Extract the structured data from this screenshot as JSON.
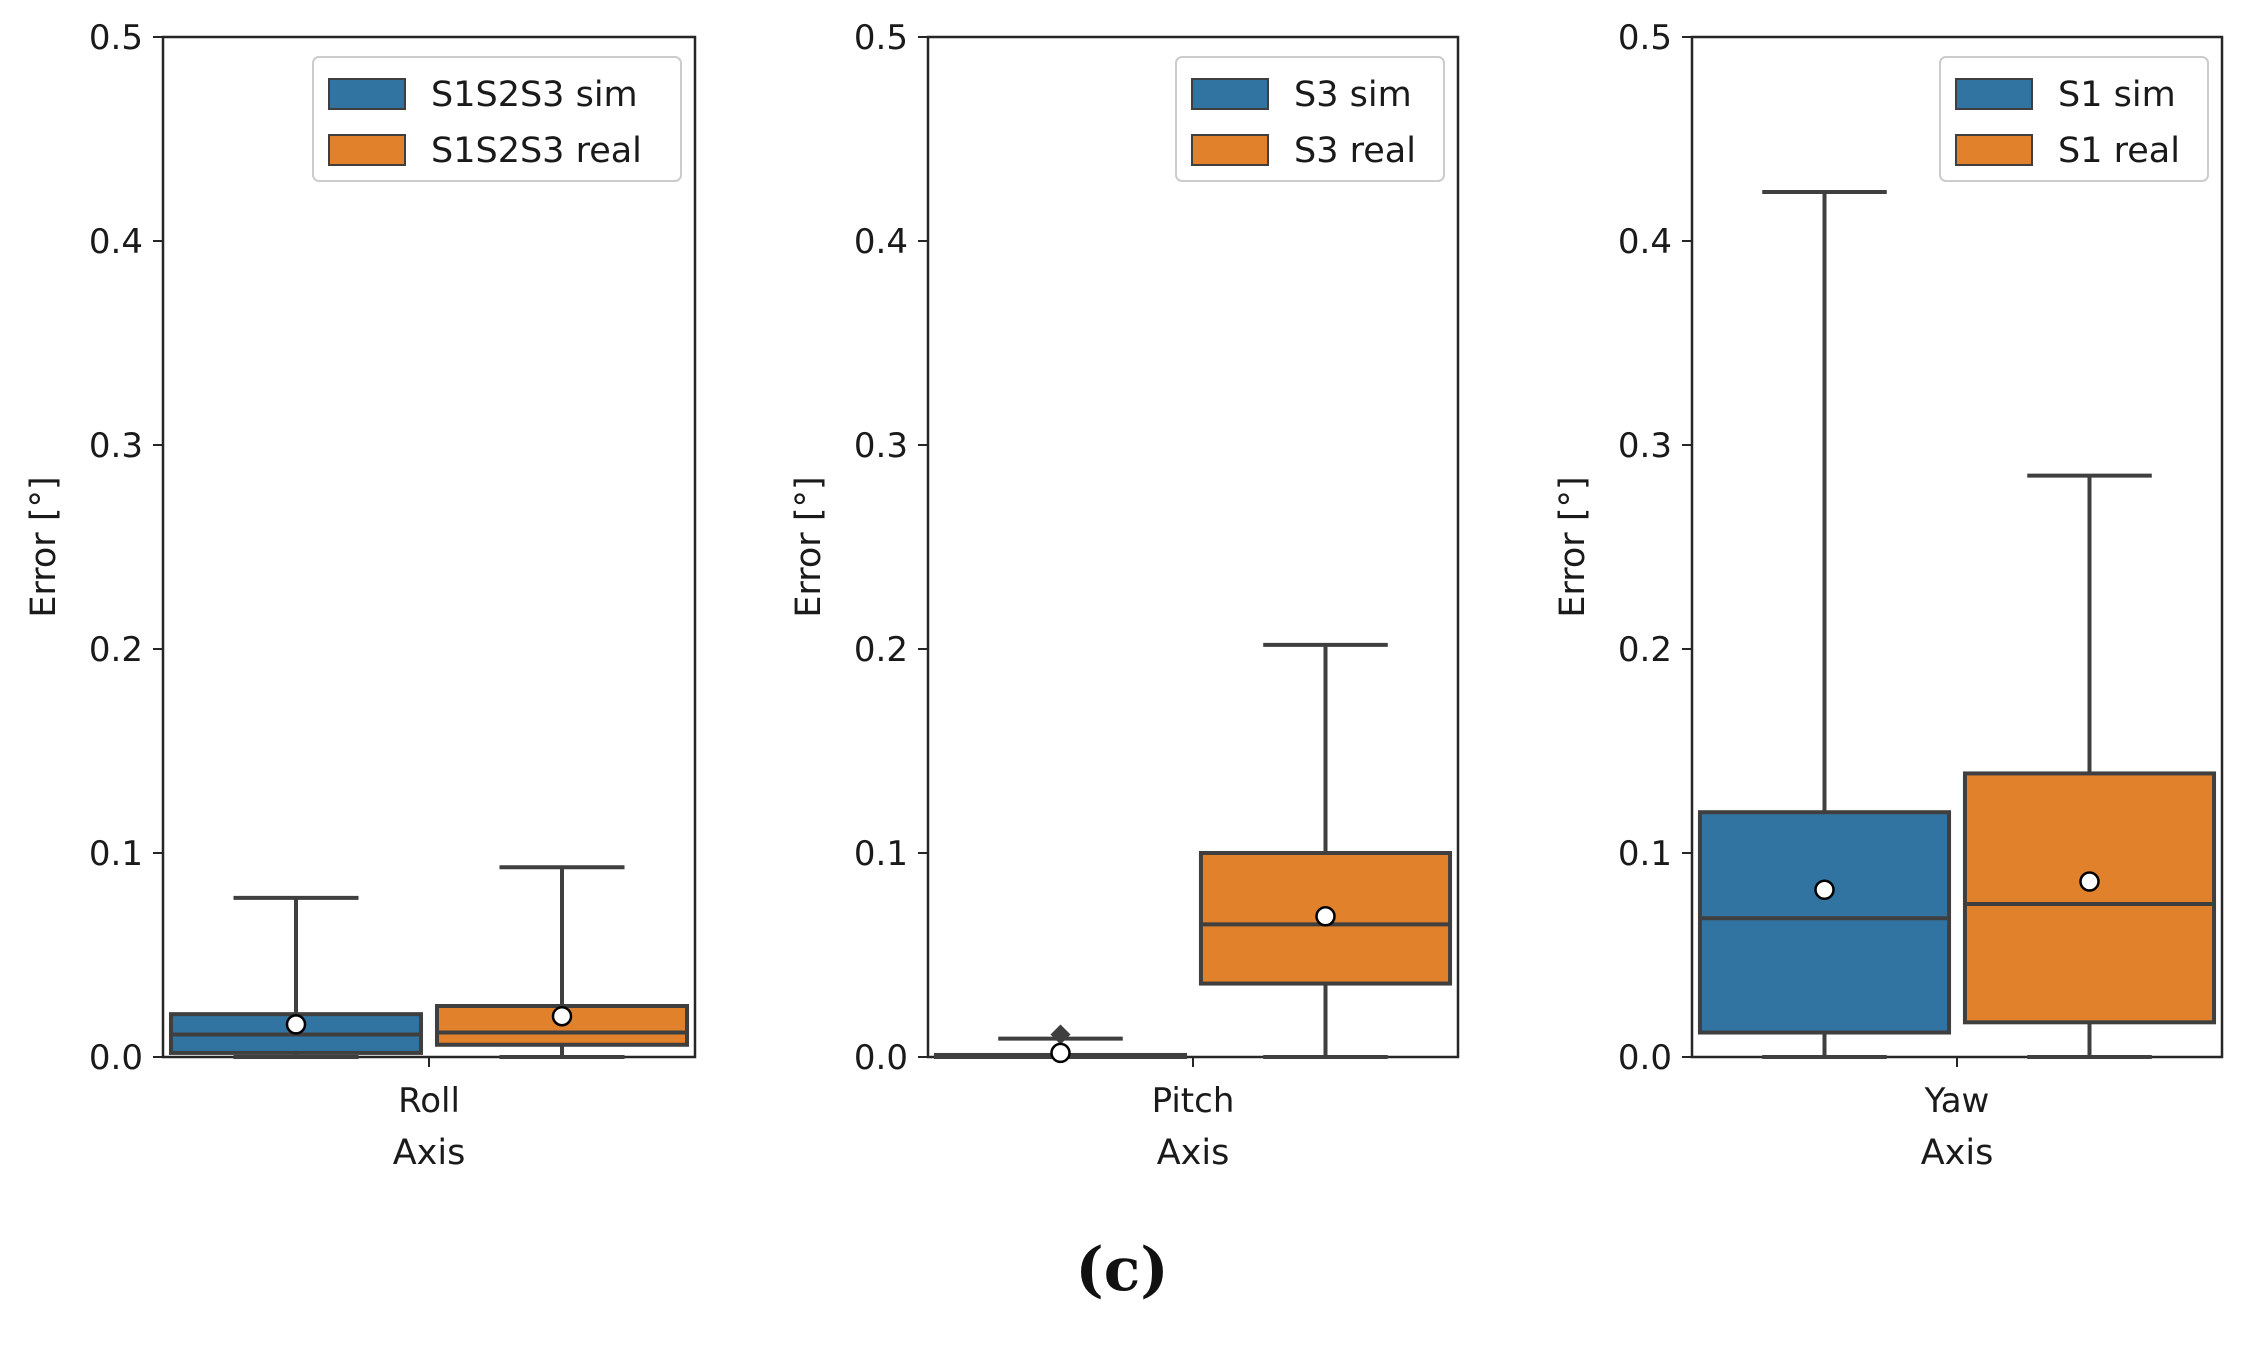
{
  "figure_caption": "(c)",
  "colors": {
    "sim": "#3274a1",
    "real": "#e1812c",
    "line": "#3f3f3f",
    "frame": "#262626"
  },
  "chart_data": [
    {
      "type": "box",
      "category": "Roll",
      "xlabel": "Axis",
      "ylabel": "Error [°]",
      "ylim": [
        0,
        0.5
      ],
      "yticks": [
        "0.0",
        "0.1",
        "0.2",
        "0.3",
        "0.4",
        "0.5"
      ],
      "legend_position": "top-right",
      "series": [
        {
          "name": "S1S2S3 sim",
          "color": "sim",
          "whisker_low": 0.0,
          "q1": 0.002,
          "median": 0.011,
          "q3": 0.021,
          "whisker_high": 0.078,
          "mean": 0.016,
          "outliers": []
        },
        {
          "name": "S1S2S3 real",
          "color": "real",
          "whisker_low": 0.0,
          "q1": 0.006,
          "median": 0.012,
          "q3": 0.025,
          "whisker_high": 0.093,
          "mean": 0.02,
          "outliers": []
        }
      ]
    },
    {
      "type": "box",
      "category": "Pitch",
      "xlabel": "Axis",
      "ylabel": "Error [°]",
      "ylim": [
        0,
        0.5
      ],
      "yticks": [
        "0.0",
        "0.1",
        "0.2",
        "0.3",
        "0.4",
        "0.5"
      ],
      "legend_position": "top-right",
      "series": [
        {
          "name": "S3 sim",
          "color": "sim",
          "whisker_low": 0.0,
          "q1": 0.0,
          "median": 0.0005,
          "q3": 0.001,
          "whisker_high": 0.009,
          "mean": 0.002,
          "outliers": [
            0.011
          ]
        },
        {
          "name": "S3 real",
          "color": "real",
          "whisker_low": 0.0,
          "q1": 0.036,
          "median": 0.065,
          "q3": 0.1,
          "whisker_high": 0.202,
          "mean": 0.069,
          "outliers": []
        }
      ]
    },
    {
      "type": "box",
      "category": "Yaw",
      "xlabel": "Axis",
      "ylabel": "Error [°]",
      "ylim": [
        0,
        0.5
      ],
      "yticks": [
        "0.0",
        "0.1",
        "0.2",
        "0.3",
        "0.4",
        "0.5"
      ],
      "legend_position": "top-right",
      "series": [
        {
          "name": "S1 sim",
          "color": "sim",
          "whisker_low": 0.0,
          "q1": 0.012,
          "median": 0.068,
          "q3": 0.12,
          "whisker_high": 0.424,
          "mean": 0.082,
          "outliers": []
        },
        {
          "name": "S1 real",
          "color": "real",
          "whisker_low": 0.0,
          "q1": 0.017,
          "median": 0.075,
          "q3": 0.139,
          "whisker_high": 0.285,
          "mean": 0.086,
          "outliers": []
        }
      ]
    }
  ]
}
